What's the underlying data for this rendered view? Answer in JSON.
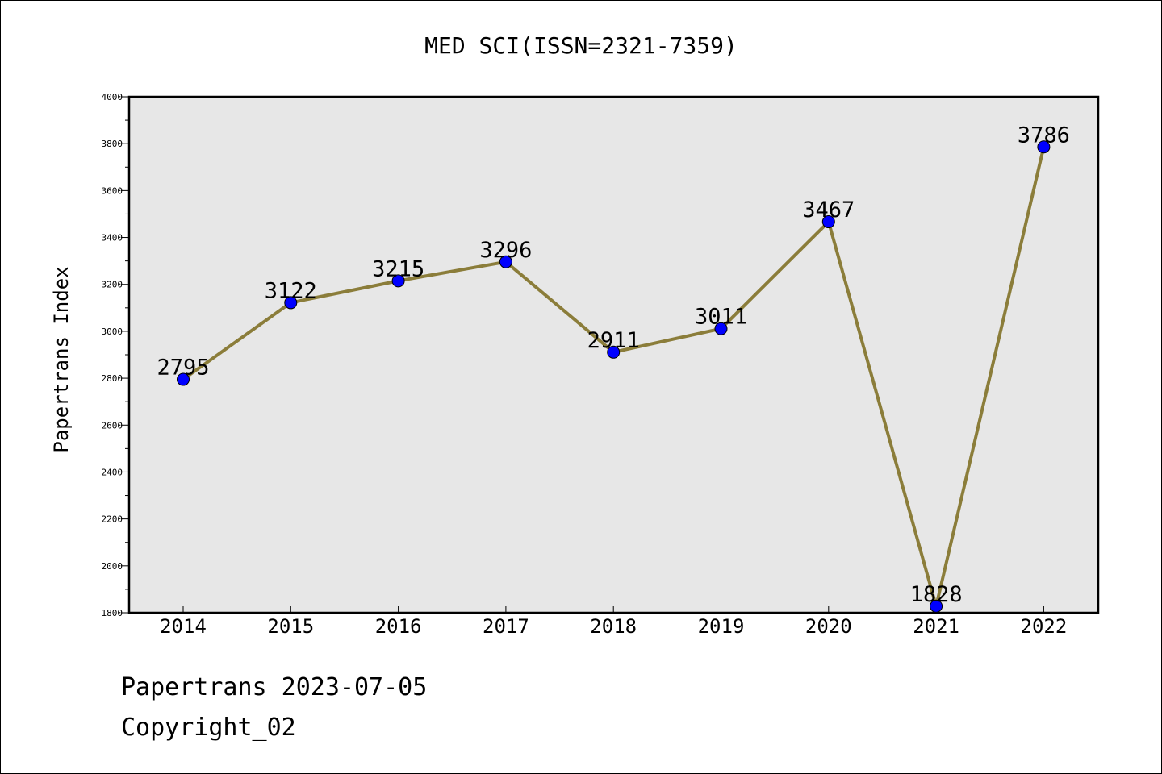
{
  "chart_data": {
    "type": "line",
    "title": "MED SCI(ISSN=2321-7359)",
    "xlabel": "",
    "ylabel": "Papertrans Index",
    "categories": [
      "2014",
      "2015",
      "2016",
      "2017",
      "2018",
      "2019",
      "2020",
      "2021",
      "2022"
    ],
    "series": [
      {
        "values": [
          2795,
          3122,
          3215,
          3296,
          2911,
          3011,
          3467,
          1828,
          3786
        ]
      }
    ],
    "ylim": [
      1800,
      4000
    ],
    "yticks": [
      "1800",
      "2000",
      "2200",
      "2400",
      "2600",
      "2800",
      "3000",
      "3200",
      "3400",
      "3600",
      "3800",
      "4000"
    ],
    "data_labels": [
      "2795",
      "3122",
      "3215",
      "3296",
      "2911",
      "3011",
      "3467",
      "1828",
      "3786"
    ],
    "grid": false,
    "legend": "none",
    "colors": {
      "line": "#8b7d3a",
      "marker": "#0000ff",
      "plot_bg": "#e7e7e7"
    }
  },
  "footer": {
    "line1": "Papertrans 2023-07-05",
    "line2": "Copyright_02"
  }
}
